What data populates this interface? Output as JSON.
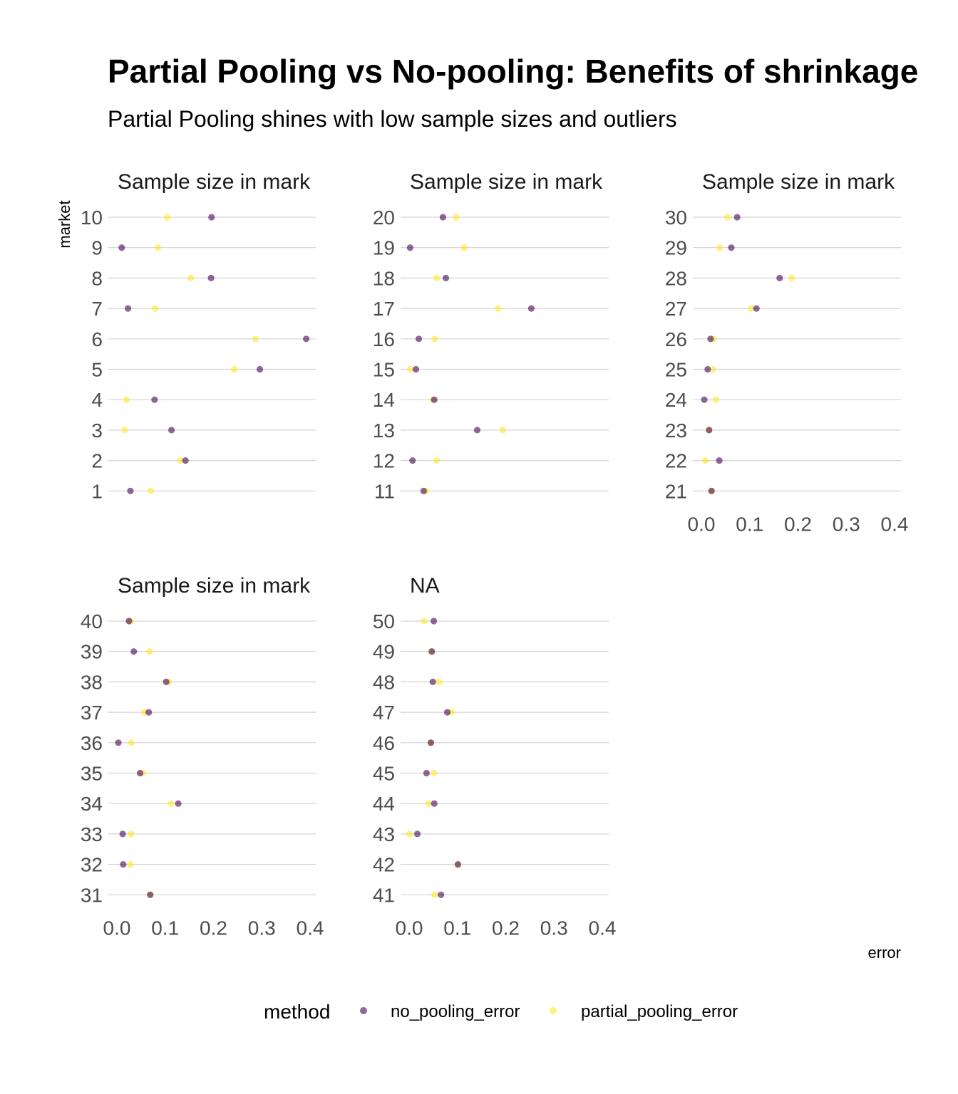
{
  "chart_data": {
    "type": "scatter",
    "title": "Partial Pooling vs No-pooling: Benefits of shrinkage",
    "subtitle": "Partial Pooling shines with low sample sizes and outliers",
    "xlabel": "error",
    "ylabel": "market",
    "xlim": [
      0,
      0.4
    ],
    "x_ticks": [
      "0.0",
      "0.1",
      "0.2",
      "0.3",
      "0.4"
    ],
    "grid": "horizontal major only",
    "legend": {
      "title": "method",
      "position": "bottom",
      "items": [
        {
          "label": "no_pooling_error",
          "color": "#440154"
        },
        {
          "label": "partial_pooling_error",
          "color": "#FDE725"
        }
      ]
    },
    "series_names": [
      "no_pooling_error",
      "partial_pooling_error"
    ],
    "panels": [
      {
        "strip": "Sample size in mark",
        "markets": [
          1,
          2,
          3,
          4,
          5,
          6,
          7,
          8,
          9,
          10
        ],
        "no_pooling_error": [
          0.028,
          0.142,
          0.113,
          0.078,
          0.296,
          0.392,
          0.023,
          0.195,
          0.01,
          0.196
        ],
        "partial_pooling_error": [
          0.07,
          0.132,
          0.016,
          0.02,
          0.243,
          0.287,
          0.079,
          0.153,
          0.085,
          0.104
        ]
      },
      {
        "strip": "Sample size in mark",
        "markets": [
          11,
          12,
          13,
          14,
          15,
          16,
          17,
          18,
          19,
          20
        ],
        "no_pooling_error": [
          0.03,
          0.007,
          0.141,
          0.052,
          0.014,
          0.02,
          0.253,
          0.076,
          0.002,
          0.07
        ],
        "partial_pooling_error": [
          0.035,
          0.057,
          0.194,
          0.049,
          0.002,
          0.053,
          0.184,
          0.057,
          0.114,
          0.098
        ]
      },
      {
        "strip": "Sample size in mark",
        "markets": [
          21,
          22,
          23,
          24,
          25,
          26,
          27,
          28,
          29,
          30
        ],
        "no_pooling_error": [
          0.021,
          0.037,
          0.016,
          0.006,
          0.013,
          0.019,
          0.114,
          0.162,
          0.062,
          0.074
        ],
        "partial_pooling_error": [
          0.021,
          0.008,
          0.016,
          0.03,
          0.024,
          0.025,
          0.103,
          0.187,
          0.038,
          0.054
        ]
      },
      {
        "strip": "Sample size in mark",
        "markets": [
          31,
          32,
          33,
          34,
          35,
          36,
          37,
          38,
          39,
          40
        ],
        "no_pooling_error": [
          0.069,
          0.013,
          0.012,
          0.127,
          0.048,
          0.003,
          0.066,
          0.102,
          0.035,
          0.025
        ],
        "partial_pooling_error": [
          0.069,
          0.028,
          0.029,
          0.112,
          0.054,
          0.03,
          0.057,
          0.107,
          0.067,
          0.028
        ]
      },
      {
        "strip": "NA",
        "markets": [
          41,
          42,
          43,
          44,
          45,
          46,
          47,
          48,
          49,
          50
        ],
        "no_pooling_error": [
          0.066,
          0.101,
          0.017,
          0.052,
          0.036,
          0.045,
          0.079,
          0.049,
          0.047,
          0.051
        ],
        "partial_pooling_error": [
          0.053,
          0.101,
          0.001,
          0.04,
          0.051,
          0.045,
          0.087,
          0.062,
          0.047,
          0.031
        ]
      }
    ]
  }
}
